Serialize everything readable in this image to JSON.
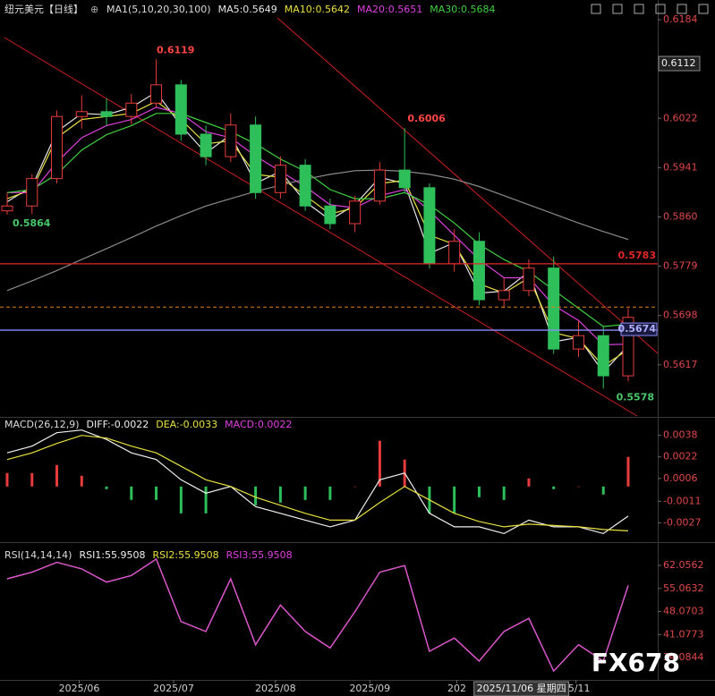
{
  "chart_data": [
    {
      "type": "candlestick",
      "title": "纽元美元【日线】",
      "indicator": "MA1(5,10,20,30,100)",
      "x": [
        0,
        1,
        2,
        3,
        4,
        5,
        6,
        7,
        8,
        9,
        10,
        11,
        12,
        13,
        14,
        15,
        16,
        17,
        18,
        19,
        20,
        21,
        22,
        23,
        24,
        25
      ],
      "xticks": [
        {
          "value": 2.9,
          "label": "2025/06"
        },
        {
          "value": 6.7,
          "label": "2025/07"
        },
        {
          "value": 10.8,
          "label": "2025/08"
        },
        {
          "value": 14.6,
          "label": "2025/09"
        },
        {
          "value": 18.1,
          "label": "202"
        },
        {
          "value": 22.9,
          "label": "25/11"
        }
      ],
      "cursor": {
        "x": 20.7,
        "label": "2025/11/06 星期四",
        "price": 0.6112
      },
      "candles": {
        "open": [
          0.587,
          0.5878,
          0.5923,
          0.6025,
          0.6033,
          0.6025,
          0.6047,
          0.6077,
          0.5996,
          0.5959,
          0.6011,
          0.59,
          0.5945,
          0.5878,
          0.5849,
          0.5886,
          0.5937,
          0.5908,
          0.5783,
          0.582,
          0.5724,
          0.5739,
          0.5776,
          0.5643,
          0.5665,
          0.5599
        ],
        "high": [
          0.59,
          0.593,
          0.6035,
          0.606,
          0.6055,
          0.6062,
          0.6119,
          0.6085,
          0.601,
          0.603,
          0.6025,
          0.596,
          0.5955,
          0.589,
          0.5895,
          0.595,
          0.6006,
          0.5915,
          0.584,
          0.5835,
          0.576,
          0.579,
          0.5795,
          0.569,
          0.568,
          0.571
        ],
        "low": [
          0.5864,
          0.5865,
          0.5915,
          0.6005,
          0.601,
          0.6012,
          0.604,
          0.5985,
          0.5945,
          0.595,
          0.589,
          0.589,
          0.587,
          0.584,
          0.5835,
          0.588,
          0.59,
          0.5775,
          0.577,
          0.5715,
          0.571,
          0.573,
          0.5635,
          0.563,
          0.5578,
          0.559
        ],
        "close": [
          0.5878,
          0.5923,
          0.6025,
          0.6033,
          0.6025,
          0.6047,
          0.6077,
          0.5996,
          0.5959,
          0.6011,
          0.59,
          0.5945,
          0.5878,
          0.5849,
          0.5886,
          0.5937,
          0.5908,
          0.5783,
          0.582,
          0.5724,
          0.5739,
          0.5776,
          0.5643,
          0.5665,
          0.5599,
          0.5695
        ]
      },
      "up_color": "#e83c3c",
      "down_color": "#2fbf5a",
      "series": [
        {
          "name": "MA5:0.5649",
          "color": "#e6e6e6",
          "values": [
            0.5885,
            0.591,
            0.6,
            0.603,
            0.6028,
            0.604,
            0.6065,
            0.601,
            0.5965,
            0.5995,
            0.5915,
            0.5935,
            0.5885,
            0.5855,
            0.588,
            0.5925,
            0.5915,
            0.58,
            0.5818,
            0.5735,
            0.5738,
            0.577,
            0.5655,
            0.5662,
            0.5605,
            0.5649
          ]
        },
        {
          "name": "MA10:0.5642",
          "color": "#e8e040",
          "values": [
            0.589,
            0.5905,
            0.599,
            0.602,
            0.6025,
            0.603,
            0.605,
            0.602,
            0.598,
            0.5985,
            0.593,
            0.5925,
            0.5895,
            0.5865,
            0.5875,
            0.5915,
            0.592,
            0.583,
            0.5815,
            0.575,
            0.5735,
            0.576,
            0.567,
            0.566,
            0.5615,
            0.5642
          ]
        },
        {
          "name": "MA20:0.5651",
          "color": "#e040e0",
          "values": [
            0.59,
            0.59,
            0.595,
            0.599,
            0.601,
            0.602,
            0.604,
            0.603,
            0.6,
            0.599,
            0.596,
            0.5935,
            0.591,
            0.588,
            0.5875,
            0.5895,
            0.5905,
            0.587,
            0.583,
            0.579,
            0.576,
            0.576,
            0.5715,
            0.569,
            0.565,
            0.5651
          ]
        },
        {
          "name": "MA30:0.5684",
          "color": "#40d040",
          "values": [
            0.59,
            0.5905,
            0.593,
            0.597,
            0.5995,
            0.601,
            0.603,
            0.603,
            0.6015,
            0.6,
            0.598,
            0.5955,
            0.5935,
            0.5905,
            0.589,
            0.589,
            0.59,
            0.588,
            0.585,
            0.5815,
            0.579,
            0.577,
            0.574,
            0.571,
            0.568,
            0.5684
          ]
        },
        {
          "color": "#8a8a8a",
          "values": [
            0.5739,
            0.5755,
            0.5772,
            0.579,
            0.5808,
            0.5826,
            0.5845,
            0.5862,
            0.5878,
            0.589,
            0.5902,
            0.5912,
            0.5922,
            0.593,
            0.5936,
            0.5937,
            0.5935,
            0.593,
            0.5922,
            0.591,
            0.5895,
            0.588,
            0.5865,
            0.585,
            0.5836,
            0.5823
          ]
        }
      ],
      "hlines": [
        {
          "value": 0.5783,
          "color": "#e02828"
        },
        {
          "value": 0.5674,
          "color": "#8c8cff",
          "boxed": true
        },
        {
          "value": 0.5712,
          "color": "#e0821e",
          "dashed": true,
          "unlabeled": true
        }
      ],
      "annotations": [
        {
          "value": 0.6119,
          "x": 5.8,
          "color": "#ff4545"
        },
        {
          "value": 0.5864,
          "x": 0,
          "color": "#48c868",
          "below": true
        },
        {
          "value": 0.6006,
          "x": 15.9,
          "color": "#ff4545"
        },
        {
          "value": 0.5578,
          "x": 24.3,
          "color": "#48c868",
          "below": true
        }
      ],
      "ylim": [
        0.5533,
        0.6187
      ],
      "yticks": [
        0.6184,
        0.6022,
        0.5941,
        {
          "value": 0.586,
          "label": "0.5860"
        },
        0.5779,
        0.5698,
        0.5617
      ]
    },
    {
      "type": "macd",
      "title": "MACD(26,12,9)",
      "x": [
        0,
        1,
        2,
        3,
        4,
        5,
        6,
        7,
        8,
        9,
        10,
        11,
        12,
        13,
        14,
        15,
        16,
        17,
        18,
        19,
        20,
        21,
        22,
        23,
        24,
        25
      ],
      "series": [
        {
          "name": "DIFF:-0.0022",
          "color": "#f0f0f0",
          "values": [
            0.0025,
            0.003,
            0.004,
            0.0042,
            0.0035,
            0.0025,
            0.002,
            0.0005,
            -0.0005,
            0.0,
            -0.0015,
            -0.002,
            -0.0025,
            -0.003,
            -0.0025,
            0.0005,
            0.001,
            -0.002,
            -0.003,
            -0.003,
            -0.0035,
            -0.0025,
            -0.003,
            -0.003,
            -0.0035,
            -0.0022
          ]
        },
        {
          "name": "DEA:-0.0033",
          "color": "#e8e040",
          "values": [
            0.002,
            0.0025,
            0.0032,
            0.0038,
            0.0036,
            0.003,
            0.0025,
            0.0015,
            0.0005,
            0.0,
            -0.0008,
            -0.0014,
            -0.002,
            -0.0025,
            -0.0025,
            -0.0012,
            0.0,
            -0.001,
            -0.002,
            -0.0026,
            -0.003,
            -0.0028,
            -0.0029,
            -0.003,
            -0.0032,
            -0.0033
          ]
        },
        {
          "name": "MACD:0.0022",
          "color": "#e040e0",
          "bars": true,
          "values": [
            0.001,
            0.001,
            0.0016,
            0.0008,
            -0.0002,
            -0.001,
            -0.001,
            -0.002,
            -0.002,
            0.0,
            -0.0014,
            -0.0012,
            -0.001,
            -0.001,
            0.0,
            0.0034,
            0.002,
            -0.002,
            -0.002,
            -0.0008,
            -0.001,
            0.0006,
            -0.0002,
            0.0,
            -0.0006,
            0.0022
          ]
        }
      ],
      "up_color": "#e83c3c",
      "down_color": "#2fbf5a",
      "ylim": [
        -0.00374,
        0.00491
      ],
      "yticks": [
        0.0038,
        0.0022,
        0.0006,
        -0.0011,
        -0.0027
      ]
    },
    {
      "type": "line",
      "title": "RSI(14,14,14)",
      "x": [
        0,
        1,
        2,
        3,
        4,
        5,
        6,
        7,
        8,
        9,
        10,
        11,
        12,
        13,
        14,
        15,
        16,
        17,
        18,
        19,
        20,
        21,
        22,
        23,
        24,
        25
      ],
      "series": [
        {
          "name": "RSI1:55.9508",
          "color": "#f0f0f0",
          "values": [
            58,
            60,
            63,
            61,
            57,
            59,
            64,
            45,
            42,
            58,
            38,
            50,
            42,
            37,
            48,
            60,
            62,
            36,
            40,
            33,
            42,
            46,
            30,
            38,
            33,
            55.9508
          ]
        },
        {
          "name": "RSI2:55.9508",
          "color": "#e8e040",
          "values": [
            58,
            60,
            63,
            61,
            57,
            59,
            64,
            45,
            42,
            58,
            38,
            50,
            42,
            37,
            48,
            60,
            62,
            36,
            40,
            33,
            42,
            46,
            30,
            38,
            33,
            55.9508
          ]
        },
        {
          "name": "RSI3:55.9508",
          "color": "#e040e0",
          "values": [
            58,
            60,
            63,
            61,
            57,
            59,
            64,
            45,
            42,
            58,
            38,
            50,
            42,
            37,
            48,
            60,
            62,
            36,
            40,
            33,
            42,
            46,
            30,
            38,
            33,
            55.9508
          ]
        }
      ],
      "ylim": [
        27.3,
        67.5
      ],
      "yticks": [
        62.0562,
        55.0632,
        48.0703,
        41.0773,
        34.0844
      ]
    }
  ],
  "watermark": "FX678"
}
